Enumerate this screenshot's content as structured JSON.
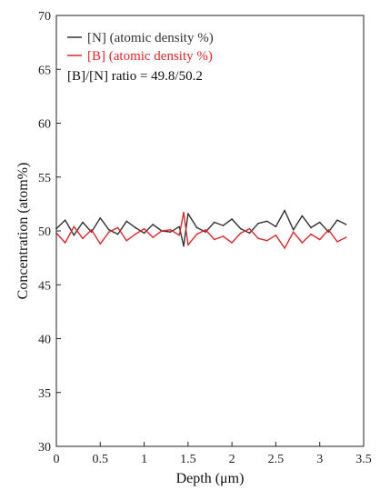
{
  "chart_data": {
    "type": "line",
    "xlabel": "Depth (μm)",
    "ylabel": "Concentration (atom%)",
    "xlim": [
      0,
      3.5
    ],
    "ylim": [
      30,
      70
    ],
    "x_ticks": [
      0,
      0.5,
      1,
      1.5,
      2,
      2.5,
      3,
      3.5
    ],
    "x_tick_labels": [
      "0",
      "0.5",
      "1",
      "1.5",
      "2",
      "2.5",
      "3",
      "3.5"
    ],
    "y_ticks": [
      30,
      35,
      40,
      45,
      50,
      55,
      60,
      65,
      70
    ],
    "y_tick_labels": [
      "30",
      "35",
      "40",
      "45",
      "50",
      "55",
      "60",
      "65",
      "70"
    ],
    "grid": false,
    "legend_position": "top-left",
    "annotation": "[B]/[N] ratio = 49.8/50.2",
    "series": [
      {
        "name": "[N] (atomic density %)",
        "color": "#333333",
        "x": [
          0,
          0.1,
          0.2,
          0.3,
          0.4,
          0.5,
          0.6,
          0.7,
          0.8,
          0.9,
          1.0,
          1.1,
          1.2,
          1.3,
          1.4,
          1.45,
          1.5,
          1.6,
          1.7,
          1.8,
          1.9,
          2.0,
          2.1,
          2.2,
          2.3,
          2.4,
          2.5,
          2.6,
          2.7,
          2.8,
          2.9,
          3.0,
          3.1,
          3.2,
          3.3
        ],
        "y": [
          50.2,
          51.0,
          49.6,
          50.8,
          49.9,
          51.2,
          50.1,
          49.7,
          50.9,
          50.3,
          49.8,
          50.6,
          50.0,
          49.9,
          50.4,
          48.6,
          51.6,
          50.3,
          49.9,
          50.8,
          50.5,
          51.1,
          50.2,
          49.8,
          50.7,
          50.9,
          50.4,
          51.9,
          50.1,
          51.4,
          50.3,
          50.8,
          49.9,
          51.0,
          50.6
        ]
      },
      {
        "name": "[B] (atomic density %)",
        "color": "#e0262b",
        "x": [
          0,
          0.1,
          0.2,
          0.3,
          0.4,
          0.5,
          0.6,
          0.7,
          0.8,
          0.9,
          1.0,
          1.1,
          1.2,
          1.3,
          1.4,
          1.45,
          1.5,
          1.6,
          1.7,
          1.8,
          1.9,
          2.0,
          2.1,
          2.2,
          2.3,
          2.4,
          2.5,
          2.6,
          2.7,
          2.8,
          2.9,
          3.0,
          3.1,
          3.2,
          3.3
        ],
        "y": [
          49.8,
          48.9,
          50.4,
          49.3,
          50.1,
          48.8,
          49.9,
          50.3,
          49.1,
          49.7,
          50.2,
          49.4,
          50.0,
          50.1,
          49.6,
          51.7,
          48.7,
          49.7,
          50.1,
          49.2,
          49.5,
          48.9,
          49.8,
          50.2,
          49.3,
          49.1,
          49.6,
          48.4,
          49.9,
          48.9,
          49.7,
          49.2,
          50.1,
          49.0,
          49.4
        ]
      }
    ]
  }
}
